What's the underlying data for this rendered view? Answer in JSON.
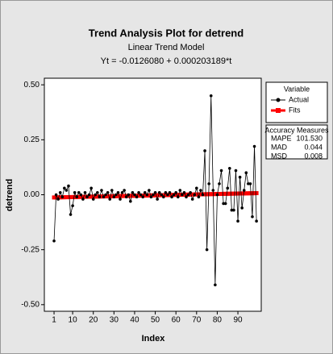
{
  "chart_data": {
    "type": "line",
    "title": "Trend Analysis Plot for detrend",
    "subtitle": "Linear Trend Model",
    "equation": "Yt = -0.0126080 + 0.000203189*t",
    "xlabel": "Index",
    "ylabel": "detrend",
    "x": [
      1,
      2,
      3,
      4,
      5,
      6,
      7,
      8,
      9,
      10,
      11,
      12,
      13,
      14,
      15,
      16,
      17,
      18,
      19,
      20,
      21,
      22,
      23,
      24,
      25,
      26,
      27,
      28,
      29,
      30,
      31,
      32,
      33,
      34,
      35,
      36,
      37,
      38,
      39,
      40,
      41,
      42,
      43,
      44,
      45,
      46,
      47,
      48,
      49,
      50,
      51,
      52,
      53,
      54,
      55,
      56,
      57,
      58,
      59,
      60,
      61,
      62,
      63,
      64,
      65,
      66,
      67,
      68,
      69,
      70,
      71,
      72,
      73,
      74,
      75,
      76,
      77,
      78,
      79,
      80,
      81,
      82,
      83,
      84,
      85,
      86,
      87,
      88,
      89,
      90,
      91,
      92,
      93,
      94,
      95,
      96,
      97,
      98,
      99
    ],
    "series": [
      {
        "name": "Actual",
        "color": "#000000",
        "values": [
          -0.21,
          0.0,
          -0.02,
          0.01,
          -0.01,
          0.03,
          0.02,
          0.04,
          -0.09,
          -0.05,
          0.01,
          -0.01,
          0.01,
          0.0,
          -0.02,
          0.01,
          -0.01,
          0.0,
          0.03,
          -0.02,
          0.0,
          0.01,
          -0.01,
          0.02,
          -0.01,
          0.0,
          0.01,
          -0.02,
          0.02,
          -0.01,
          0.0,
          0.01,
          -0.02,
          0.01,
          0.02,
          -0.01,
          0.0,
          -0.03,
          0.01,
          0.0,
          -0.01,
          0.01,
          0.0,
          -0.01,
          0.01,
          0.0,
          0.02,
          -0.01,
          0.0,
          0.01,
          -0.02,
          0.01,
          0.0,
          -0.01,
          0.01,
          0.0,
          0.01,
          -0.01,
          0.0,
          0.01,
          -0.01,
          0.02,
          0.0,
          0.01,
          -0.01,
          0.0,
          0.01,
          -0.02,
          0.0,
          0.03,
          -0.01,
          0.02,
          0.0,
          0.2,
          -0.25,
          0.05,
          0.45,
          0.02,
          -0.41,
          0.0,
          0.05,
          0.11,
          -0.04,
          -0.04,
          0.03,
          0.12,
          -0.07,
          -0.07,
          0.11,
          -0.12,
          0.08,
          -0.06,
          0.02,
          0.1,
          0.05,
          0.05,
          -0.1,
          0.22,
          -0.12
        ]
      },
      {
        "name": "Fits",
        "color": "#ff0000",
        "values": [
          -0.0124,
          -0.0122,
          -0.012,
          -0.0118,
          -0.0116,
          -0.0114,
          -0.0112,
          -0.011,
          -0.0108,
          -0.0106,
          -0.0104,
          -0.0102,
          -0.01,
          -0.0098,
          -0.0096,
          -0.0094,
          -0.0092,
          -0.009,
          -0.0088,
          -0.0086,
          -0.0084,
          -0.0082,
          -0.008,
          -0.0078,
          -0.0076,
          -0.0074,
          -0.0072,
          -0.007,
          -0.0068,
          -0.0066,
          -0.0064,
          -0.0062,
          -0.006,
          -0.0058,
          -0.0056,
          -0.0054,
          -0.0052,
          -0.005,
          -0.0048,
          -0.0046,
          -0.0044,
          -0.0042,
          -0.004,
          -0.0038,
          -0.0036,
          -0.0034,
          -0.0032,
          -0.003,
          -0.0028,
          -0.0026,
          -0.0024,
          -0.0022,
          -0.002,
          -0.0018,
          -0.0016,
          -0.0014,
          -0.0012,
          -0.001,
          -0.0008,
          -0.0006,
          -0.0004,
          -0.0002,
          0,
          0.0002,
          0.0004,
          0.0006,
          0.0008,
          0.001,
          0.0012,
          0.0014,
          0.0016,
          0.0018,
          0.002,
          0.0022,
          0.0024,
          0.0026,
          0.0028,
          0.003,
          0.0032,
          0.0034,
          0.0036,
          0.0038,
          0.004,
          0.0042,
          0.0044,
          0.0046,
          0.0048,
          0.005,
          0.0052,
          0.0054,
          0.0056,
          0.0058,
          0.006,
          0.0062,
          0.0064,
          0.0066,
          0.0068,
          0.007,
          0.0072
        ]
      }
    ],
    "xlim": [
      -3.7,
      101.3
    ],
    "ylim": [
      -0.53,
      0.53
    ],
    "xticks": [
      1,
      10,
      20,
      30,
      40,
      50,
      60,
      70,
      80,
      90
    ],
    "yticks": [
      {
        "value": -0.5,
        "label": "-0.50"
      },
      {
        "value": -0.25,
        "label": "-0.25"
      },
      {
        "value": 0,
        "label": "0.00"
      },
      {
        "value": 0.25,
        "label": "0.25"
      },
      {
        "value": 0.5,
        "label": "0.50"
      }
    ],
    "legend_title": "Variable",
    "accuracy_measures": {
      "title": "Accuracy Measures",
      "rows": [
        [
          "MAPE",
          "101.530"
        ],
        [
          "MAD",
          "0.044"
        ],
        [
          "MSD",
          "0.008"
        ]
      ]
    }
  }
}
